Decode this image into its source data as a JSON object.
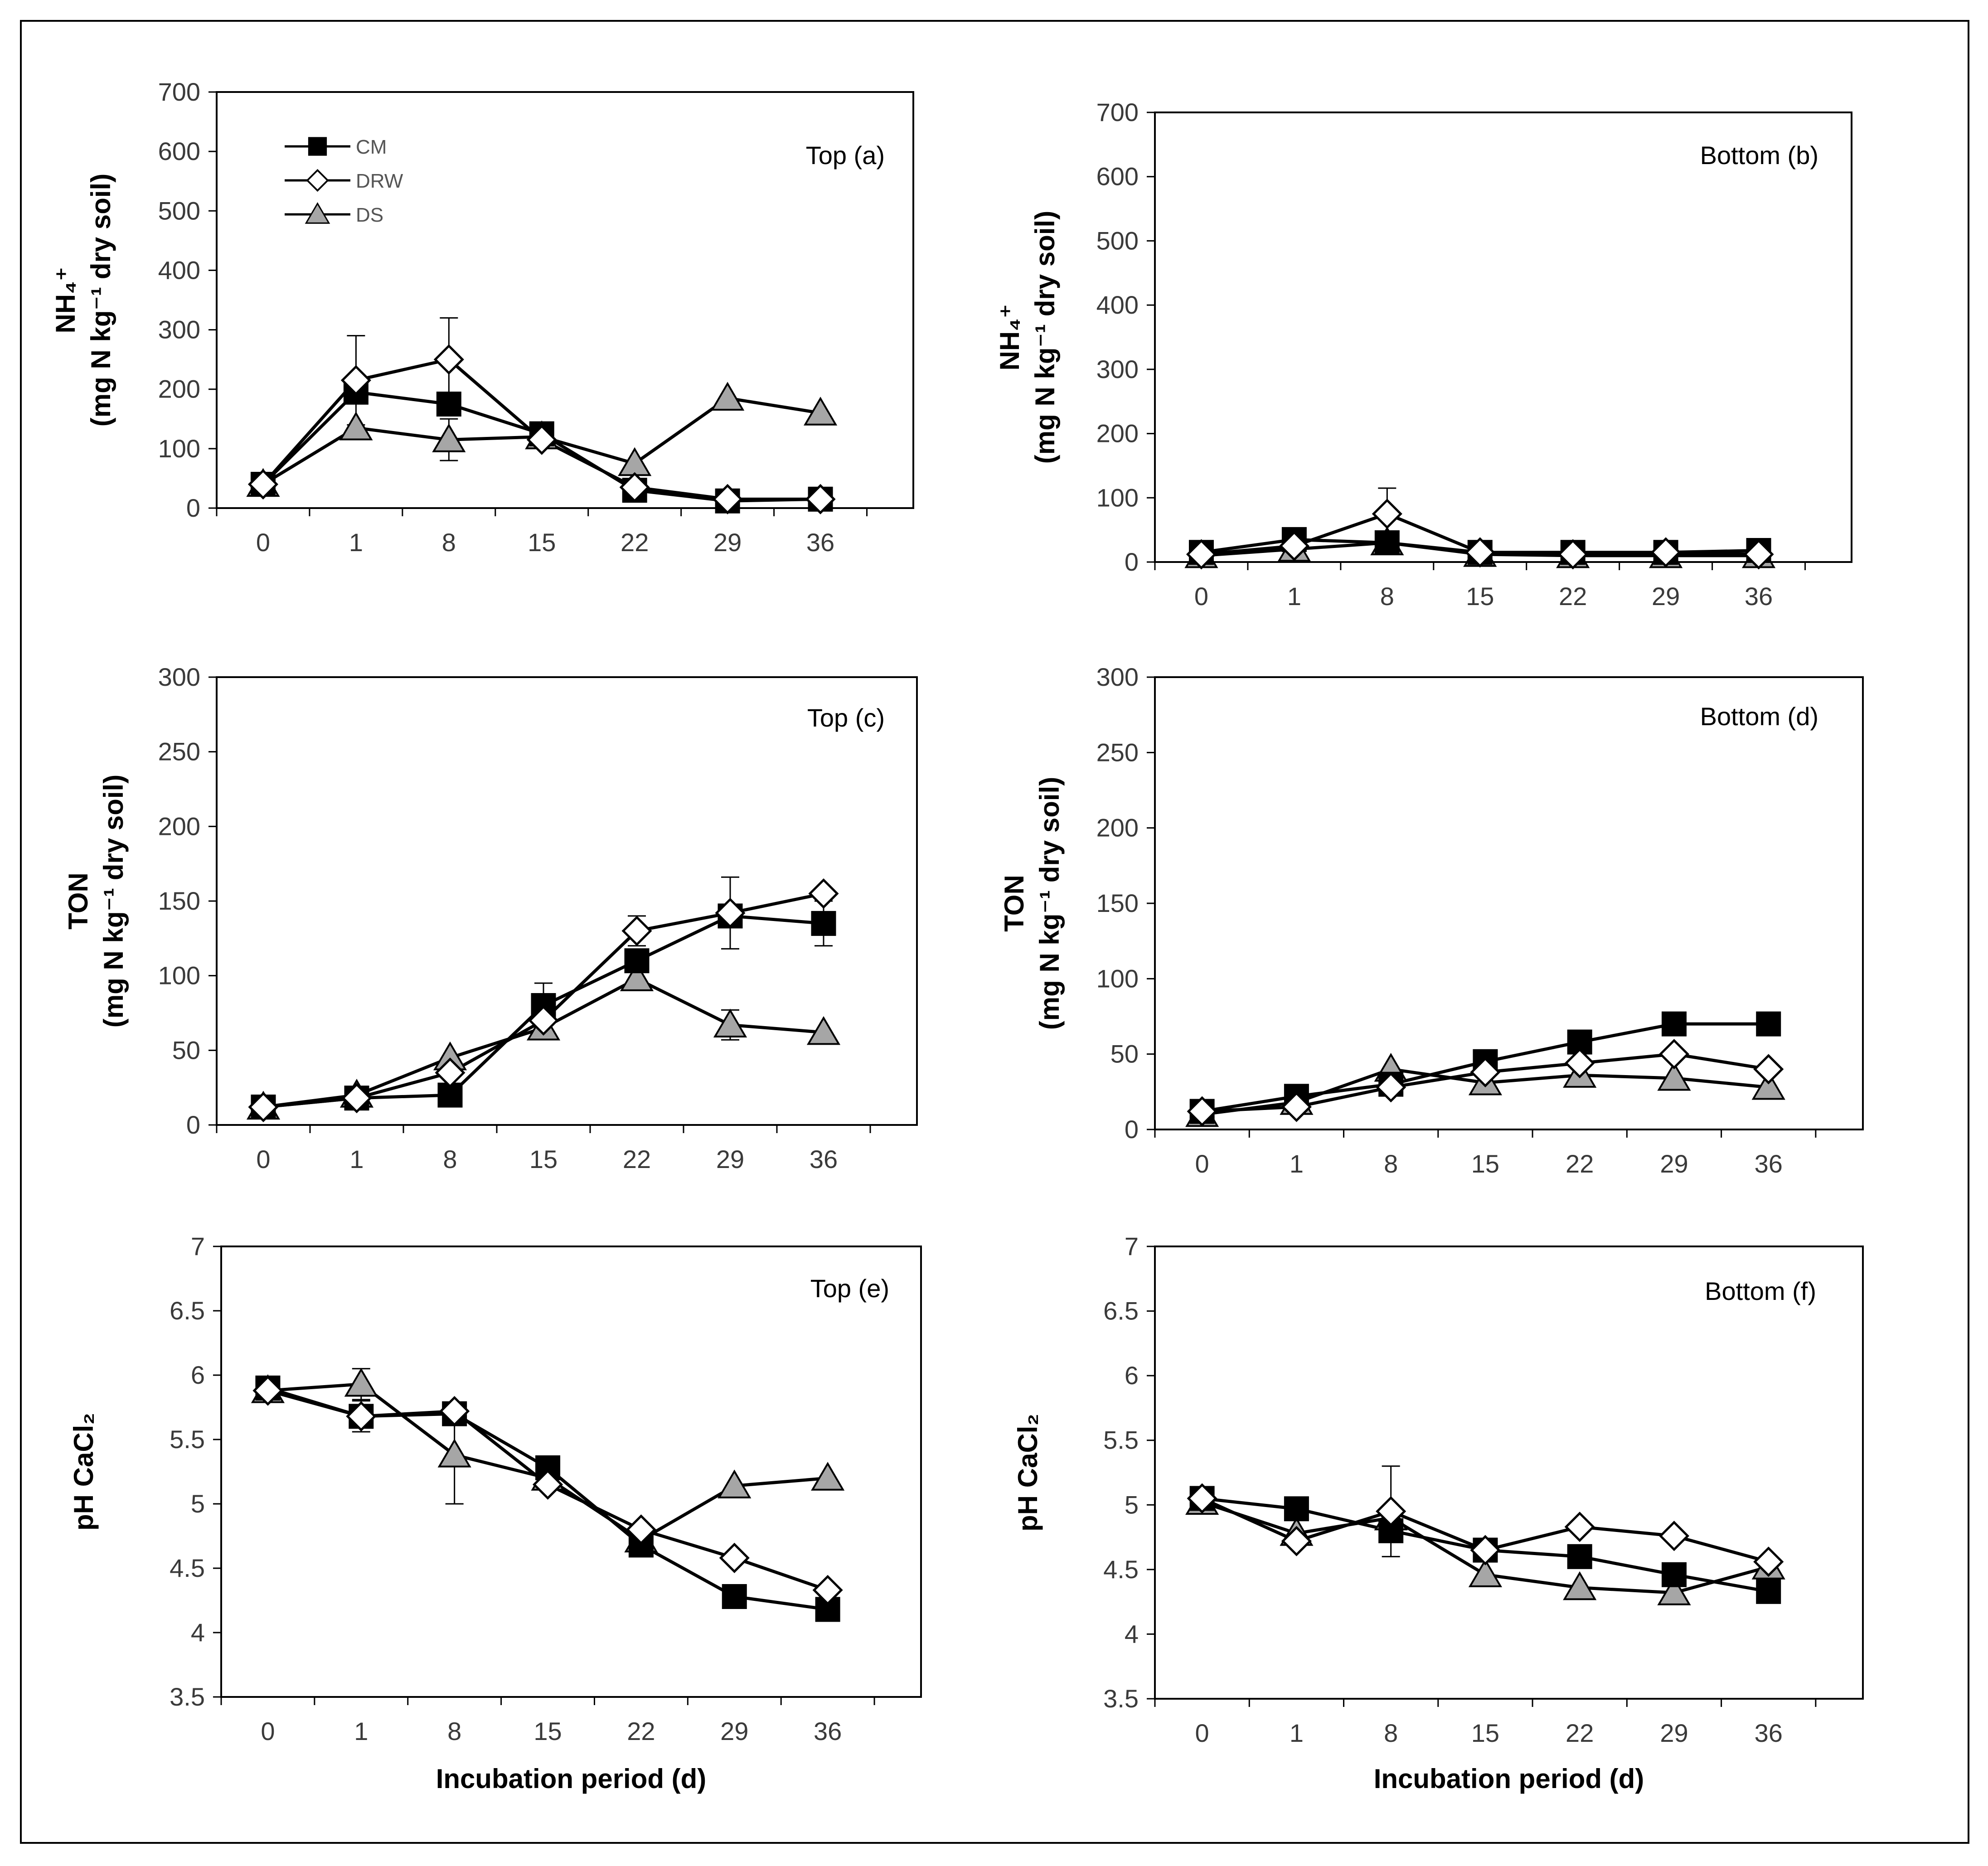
{
  "figure": {
    "x_axis_title": "Incubation period (d)",
    "legend": [
      {
        "key": "CM",
        "label": "CM"
      },
      {
        "key": "DRW",
        "label": "DRW"
      },
      {
        "key": "DS",
        "label": "DS"
      }
    ]
  },
  "chart_data": [
    {
      "type": "line",
      "panel": "Top (a)",
      "title": "Top (a)",
      "ylabel_lines": [
        "NH₄⁺",
        "(mg N kg⁻¹ dry soil)"
      ],
      "xlabel": "",
      "categories": [
        "0",
        "1",
        "8",
        "15",
        "22",
        "29",
        "36"
      ],
      "ylim": [
        0,
        700
      ],
      "yticks": [
        0,
        100,
        200,
        300,
        400,
        500,
        600,
        700
      ],
      "ytick_labels": [
        "0",
        "100",
        "200",
        "300",
        "400",
        "500",
        "600",
        "700"
      ],
      "show_legend": true,
      "series": [
        {
          "name": "CM",
          "values": [
            40,
            195,
            175,
            125,
            30,
            12,
            15
          ],
          "err": [
            0,
            0,
            0,
            0,
            0,
            0,
            0
          ]
        },
        {
          "name": "DRW",
          "values": [
            40,
            215,
            250,
            115,
            35,
            15,
            15
          ],
          "err": [
            0,
            75,
            70,
            0,
            0,
            0,
            0
          ]
        },
        {
          "name": "DS",
          "values": [
            40,
            135,
            115,
            120,
            75,
            185,
            160
          ],
          "err": [
            0,
            0,
            35,
            0,
            0,
            0,
            0
          ]
        }
      ]
    },
    {
      "type": "line",
      "panel": "Bottom (b)",
      "title": "Bottom (b)",
      "ylabel_lines": [
        "NH₄⁺",
        "(mg N kg⁻¹ dry soil)"
      ],
      "xlabel": "",
      "categories": [
        "0",
        "1",
        "8",
        "15",
        "22",
        "29",
        "36"
      ],
      "ylim": [
        0,
        700
      ],
      "yticks": [
        0,
        100,
        200,
        300,
        400,
        500,
        600,
        700
      ],
      "ytick_labels": [
        "0",
        "100",
        "200",
        "300",
        "400",
        "500",
        "600",
        "700"
      ],
      "show_legend": false,
      "series": [
        {
          "name": "CM",
          "values": [
            15,
            35,
            30,
            15,
            15,
            15,
            18
          ],
          "err": [
            0,
            0,
            0,
            0,
            0,
            0,
            0
          ]
        },
        {
          "name": "DRW",
          "values": [
            12,
            25,
            75,
            15,
            12,
            15,
            12
          ],
          "err": [
            0,
            0,
            40,
            0,
            0,
            0,
            0
          ]
        },
        {
          "name": "DS",
          "values": [
            10,
            20,
            30,
            12,
            10,
            10,
            10
          ],
          "err": [
            0,
            0,
            0,
            0,
            0,
            0,
            0
          ]
        }
      ]
    },
    {
      "type": "line",
      "panel": "Top (c)",
      "title": "Top (c)",
      "ylabel_lines": [
        "TON",
        "(mg N kg⁻¹ dry soil)"
      ],
      "xlabel": "",
      "categories": [
        "0",
        "1",
        "8",
        "15",
        "22",
        "29",
        "36"
      ],
      "ylim": [
        0,
        300
      ],
      "yticks": [
        0,
        50,
        100,
        150,
        200,
        250,
        300
      ],
      "ytick_labels": [
        "0",
        "50",
        "100",
        "150",
        "200",
        "250",
        "300"
      ],
      "show_legend": false,
      "series": [
        {
          "name": "CM",
          "values": [
            12,
            18,
            20,
            80,
            110,
            140,
            135
          ],
          "err": [
            0,
            0,
            0,
            15,
            0,
            0,
            15
          ]
        },
        {
          "name": "DRW",
          "values": [
            12,
            18,
            35,
            70,
            130,
            142,
            155
          ],
          "err": [
            0,
            0,
            0,
            0,
            10,
            24,
            0
          ]
        },
        {
          "name": "DS",
          "values": [
            12,
            20,
            45,
            65,
            98,
            67,
            62
          ],
          "err": [
            0,
            0,
            0,
            0,
            0,
            10,
            0
          ]
        }
      ]
    },
    {
      "type": "line",
      "panel": "Bottom (d)",
      "title": "Bottom (d)",
      "ylabel_lines": [
        "TON",
        "(mg N kg⁻¹ dry soil)"
      ],
      "xlabel": "",
      "categories": [
        "0",
        "1",
        "8",
        "15",
        "22",
        "29",
        "36"
      ],
      "ylim": [
        0,
        300
      ],
      "yticks": [
        0,
        50,
        100,
        150,
        200,
        250,
        300
      ],
      "ytick_labels": [
        "0",
        "50",
        "100",
        "150",
        "200",
        "250",
        "300"
      ],
      "show_legend": false,
      "series": [
        {
          "name": "CM",
          "values": [
            12,
            22,
            30,
            45,
            58,
            70,
            70
          ],
          "err": [
            0,
            0,
            0,
            0,
            0,
            0,
            0
          ]
        },
        {
          "name": "DRW",
          "values": [
            12,
            15,
            28,
            38,
            44,
            50,
            40
          ],
          "err": [
            0,
            0,
            0,
            0,
            0,
            0,
            0
          ]
        },
        {
          "name": "DS",
          "values": [
            10,
            18,
            40,
            31,
            36,
            34,
            28
          ],
          "err": [
            0,
            0,
            0,
            0,
            0,
            0,
            0
          ]
        }
      ]
    },
    {
      "type": "line",
      "panel": "Top (e)",
      "title": "Top (e)",
      "ylabel_lines": [
        "pH CaCl₂"
      ],
      "xlabel": "Incubation period (d)",
      "categories": [
        "0",
        "1",
        "8",
        "15",
        "22",
        "29",
        "36"
      ],
      "ylim": [
        3.5,
        7
      ],
      "yticks": [
        3.5,
        4,
        4.5,
        5,
        5.5,
        6,
        6.5,
        7
      ],
      "ytick_labels": [
        "3.5",
        "4",
        "4.5",
        "5",
        "5.5",
        "6",
        "6.5",
        "7"
      ],
      "show_legend": false,
      "series": [
        {
          "name": "CM",
          "values": [
            5.9,
            5.68,
            5.7,
            5.28,
            4.68,
            4.28,
            4.18
          ],
          "err": [
            0,
            0,
            0,
            0,
            0,
            0,
            0
          ]
        },
        {
          "name": "DRW",
          "values": [
            5.88,
            5.68,
            5.72,
            5.15,
            4.8,
            4.58,
            4.33
          ],
          "err": [
            0,
            0.12,
            0,
            0,
            0,
            0,
            0
          ]
        },
        {
          "name": "DS",
          "values": [
            5.88,
            5.93,
            5.38,
            5.2,
            4.72,
            5.14,
            5.2
          ],
          "err": [
            0,
            0.12,
            0.38,
            0,
            0,
            0,
            0
          ]
        }
      ]
    },
    {
      "type": "line",
      "panel": "Bottom (f)",
      "title": "Bottom (f)",
      "ylabel_lines": [
        "pH CaCl₂"
      ],
      "xlabel": "Incubation period (d)",
      "categories": [
        "0",
        "1",
        "8",
        "15",
        "22",
        "29",
        "36"
      ],
      "ylim": [
        3.5,
        7
      ],
      "yticks": [
        3.5,
        4,
        4.5,
        5,
        5.5,
        6,
        6.5,
        7
      ],
      "ytick_labels": [
        "3.5",
        "4",
        "4.5",
        "5",
        "5.5",
        "6",
        "6.5",
        "7"
      ],
      "show_legend": false,
      "series": [
        {
          "name": "CM",
          "values": [
            5.05,
            4.97,
            4.8,
            4.65,
            4.6,
            4.46,
            4.33
          ],
          "err": [
            0,
            0,
            0,
            0,
            0,
            0,
            0
          ]
        },
        {
          "name": "DRW",
          "values": [
            5.05,
            4.72,
            4.95,
            4.65,
            4.83,
            4.76,
            4.56
          ],
          "err": [
            0,
            0,
            0.35,
            0,
            0,
            0,
            0
          ]
        },
        {
          "name": "DS",
          "values": [
            5.02,
            4.78,
            4.9,
            4.46,
            4.36,
            4.32,
            4.52
          ],
          "err": [
            0,
            0,
            0,
            0,
            0,
            0,
            0
          ]
        }
      ]
    }
  ]
}
